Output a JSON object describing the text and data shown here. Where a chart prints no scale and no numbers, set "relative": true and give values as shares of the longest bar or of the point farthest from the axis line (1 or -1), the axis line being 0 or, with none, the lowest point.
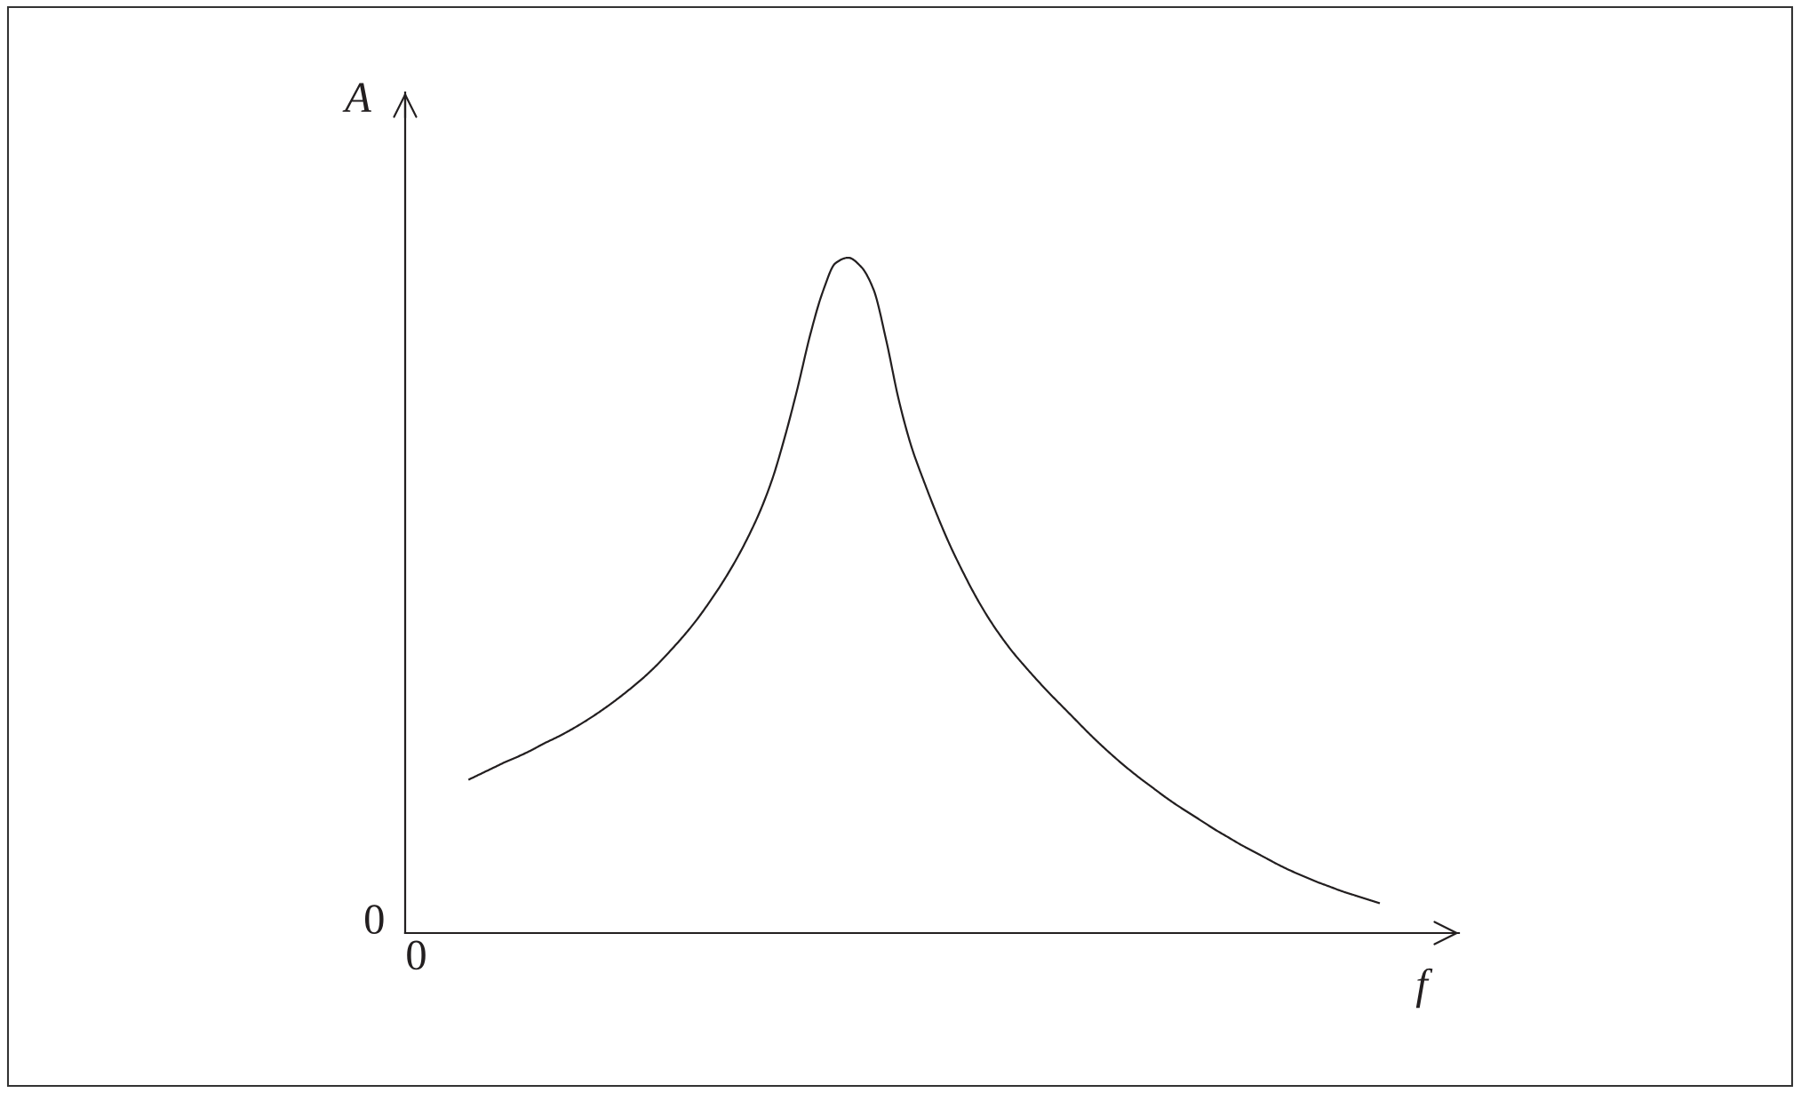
{
  "chart_data": {
    "type": "line",
    "xlabel": "f",
    "ylabel": "A",
    "relative": true,
    "line_style": "solid",
    "categories": [
      null,
      null,
      null,
      null,
      null,
      null,
      null,
      null,
      null,
      null,
      null,
      null,
      null,
      null,
      null,
      null,
      null,
      null,
      null,
      null,
      null,
      null,
      null,
      null,
      null,
      null,
      null,
      null,
      null,
      null,
      null,
      null,
      null,
      null,
      null,
      null,
      null,
      null,
      null,
      null,
      null,
      null,
      null,
      null,
      null,
      null,
      null,
      null,
      null,
      null,
      null,
      null,
      null,
      null,
      null,
      null,
      null,
      null,
      null,
      null,
      null,
      null,
      null,
      null,
      null,
      null,
      null,
      null,
      null,
      null,
      null,
      null,
      null,
      null,
      null,
      null,
      null,
      null
    ],
    "series": [
      {
        "color": "#231f20",
        "values": [
          null,
          null,
          null,
          null,
          null,
          0.227,
          0.236,
          0.245,
          0.254,
          0.262,
          0.271,
          0.281,
          0.29,
          0.3,
          0.311,
          0.323,
          0.336,
          0.35,
          0.365,
          0.381,
          0.399,
          0.419,
          0.44,
          0.463,
          0.489,
          0.517,
          0.548,
          0.583,
          0.623,
          0.672,
          0.735,
          0.807,
          0.886,
          0.95,
          0.992,
          1.0,
          0.987,
          0.953,
          0.878,
          0.789,
          0.72,
          0.668,
          0.62,
          0.576,
          0.537,
          0.501,
          0.469,
          0.441,
          0.416,
          0.394,
          0.373,
          0.353,
          0.334,
          0.315,
          0.296,
          0.278,
          0.261,
          0.245,
          0.23,
          0.216,
          0.202,
          0.189,
          0.177,
          0.165,
          0.153,
          0.142,
          0.131,
          0.121,
          0.111,
          0.101,
          0.092,
          0.084,
          0.076,
          0.069,
          0.062,
          0.056,
          0.05,
          0.044
        ]
      }
    ],
    "annotations": [
      "0",
      "0"
    ]
  }
}
